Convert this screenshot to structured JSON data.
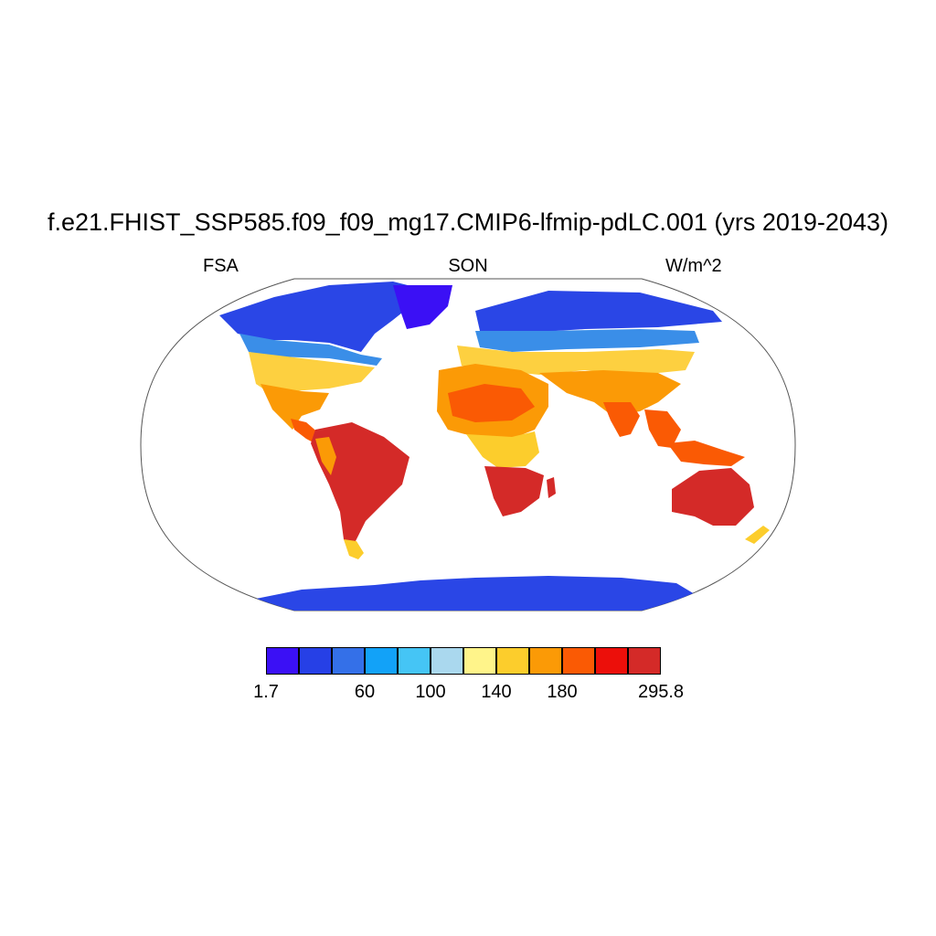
{
  "title": "f.e21.FHIST_SSP585.f09_f09_mg17.CMIP6-lfmip-pdLC.001 (yrs 2019-2043)",
  "variable": "FSA",
  "season": "SON",
  "units": "W/m^2",
  "colorbar": {
    "colors": [
      "#3b10f5",
      "#2640e6",
      "#3470e8",
      "#12a2f8",
      "#45c5f5",
      "#aad8ee",
      "#fff48a",
      "#fccd2c",
      "#fb9a06",
      "#fa5a04",
      "#ec0f0a",
      "#d42a28"
    ],
    "labels": [
      {
        "text": "1.7",
        "boundary": 0
      },
      {
        "text": "60",
        "boundary": 3
      },
      {
        "text": "100",
        "boundary": 5
      },
      {
        "text": "140",
        "boundary": 7
      },
      {
        "text": "180",
        "boundary": 9
      },
      {
        "text": "295.8",
        "boundary": 12
      }
    ]
  },
  "chart_data": {
    "type": "heatmap",
    "projection": "Robinson",
    "title": "f.e21.FHIST_SSP585.f09_f09_mg17.CMIP6-lfmip-pdLC.001 (yrs 2019-2043)",
    "variable": "FSA",
    "season": "SON",
    "units": "W/m^2",
    "range": [
      1.7,
      295.8
    ],
    "tick_labels": [
      "1.7",
      "60",
      "100",
      "140",
      "180",
      "295.8"
    ]
  }
}
